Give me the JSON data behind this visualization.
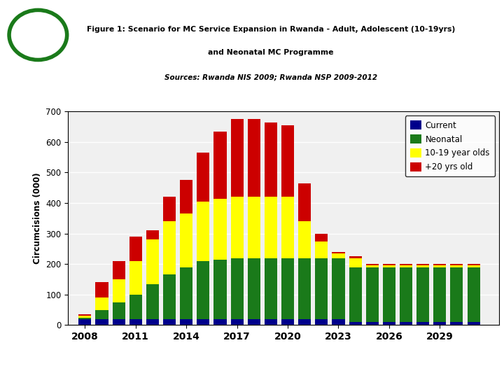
{
  "title_line1": "Figure 1: Scenario for MC Service Expansion in Rwanda - Adult, Adolescent (10-19yrs)",
  "title_line2": "and Neonatal MC Programme",
  "title_line3": "Sources: Rwanda NIS 2009; Rwanda NSP 2009-2012",
  "ylabel": "Circumcisions (000)",
  "years": [
    2008,
    2009,
    2010,
    2011,
    2012,
    2013,
    2014,
    2015,
    2016,
    2017,
    2018,
    2019,
    2020,
    2021,
    2022,
    2023,
    2024,
    2025,
    2026,
    2027,
    2028,
    2029,
    2030,
    2031
  ],
  "current": [
    20,
    20,
    20,
    20,
    20,
    20,
    20,
    20,
    20,
    20,
    20,
    20,
    20,
    20,
    20,
    20,
    10,
    10,
    10,
    10,
    10,
    10,
    10,
    10
  ],
  "neonatal": [
    5,
    30,
    55,
    80,
    115,
    145,
    170,
    190,
    195,
    200,
    200,
    200,
    200,
    200,
    200,
    200,
    180,
    180,
    180,
    180,
    180,
    180,
    180,
    180
  ],
  "teen": [
    5,
    40,
    75,
    110,
    145,
    175,
    175,
    195,
    200,
    200,
    200,
    200,
    200,
    120,
    55,
    15,
    30,
    5,
    5,
    5,
    5,
    5,
    5,
    5
  ],
  "adult": [
    5,
    50,
    60,
    80,
    30,
    80,
    110,
    160,
    220,
    255,
    255,
    245,
    235,
    125,
    25,
    5,
    5,
    5,
    5,
    5,
    5,
    5,
    5,
    5
  ],
  "color_current": "#00008B",
  "color_neonatal": "#1A7A1A",
  "color_teen": "#FFFF00",
  "color_adult": "#CC0000",
  "ylim": [
    0,
    700
  ],
  "yticks": [
    0,
    100,
    200,
    300,
    400,
    500,
    600,
    700
  ],
  "xtick_labels": [
    "2008",
    "2011",
    "2014",
    "2017",
    "2020",
    "2023",
    "2026",
    "2029"
  ],
  "xtick_positions": [
    2008,
    2011,
    2014,
    2017,
    2020,
    2023,
    2026,
    2029
  ],
  "left_panel_color": "#8FBC8F",
  "banner_color": "#1B2A6B",
  "chart_bg": "#F0F0F0",
  "legend_labels": [
    "Current",
    "Neonatal",
    "10-19 year olds",
    "+20 yrs old"
  ]
}
